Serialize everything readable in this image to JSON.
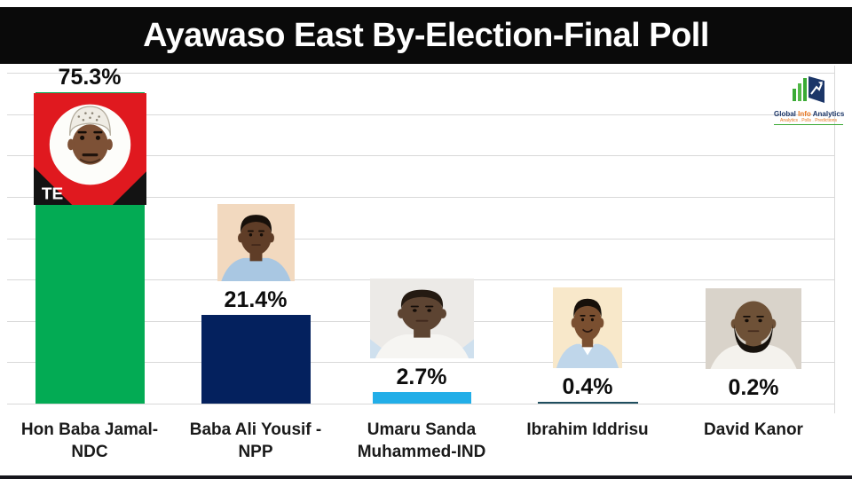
{
  "title": "Ayawaso East By-Election-Final Poll",
  "logo": {
    "part1": "Global",
    "part2": "Info",
    "part3": "Analytics",
    "tagline": "Analytics . Polls . Predictions",
    "colors": {
      "navy": "#1c3668",
      "orange": "#e87722",
      "green": "#3aaa35"
    }
  },
  "chart_data": {
    "type": "bar",
    "title": "Ayawaso East By-Election-Final Poll",
    "categories": [
      "Hon Baba Jamal-NDC",
      "Baba Ali Yousif -NPP",
      "Umaru Sanda Muhammed-IND",
      "Ibrahim Iddrisu",
      "David Kanor"
    ],
    "values": [
      75.3,
      21.4,
      2.7,
      0.4,
      0.2
    ],
    "value_labels": [
      "75.3%",
      "21.4%",
      "2.7%",
      "0.4%",
      "0.2%"
    ],
    "bar_colors": [
      "#03ab54",
      "#04215e",
      "#22aee8",
      "#1f4e5f",
      "#1f4e5f"
    ],
    "xlabel": "",
    "ylabel": "",
    "ylim": [
      0,
      80
    ],
    "gridline_step_pct": 10,
    "grid": true,
    "legend": false,
    "gridline_color": "#d9d9d9",
    "background": "#ffffff"
  },
  "candidates": [
    {
      "name": "Hon Baba Jamal-\nNDC",
      "pct_label": "75.3%",
      "value": 75.3,
      "color": "#03ab54",
      "photo": "ndc-campaign-poster-portrait",
      "photo_overlay_text": "TE"
    },
    {
      "name": "Baba Ali Yousif -\nNPP",
      "pct_label": "21.4%",
      "value": 21.4,
      "color": "#04215e",
      "photo": "portrait-young-man-blue-shirt"
    },
    {
      "name": "Umaru Sanda\nMuhammed-IND",
      "pct_label": "2.7%",
      "value": 2.7,
      "color": "#22aee8",
      "photo": "portrait-man-white-shirt"
    },
    {
      "name": "Ibrahim Iddrisu",
      "pct_label": "0.4%",
      "value": 0.4,
      "color": "#1f4e5f",
      "photo": "portrait-smiling-man-blue-shirt"
    },
    {
      "name": "David Kanor",
      "pct_label": "0.2%",
      "value": 0.2,
      "color": "#1f4e5f",
      "photo": "portrait-bald-man-beard"
    }
  ]
}
